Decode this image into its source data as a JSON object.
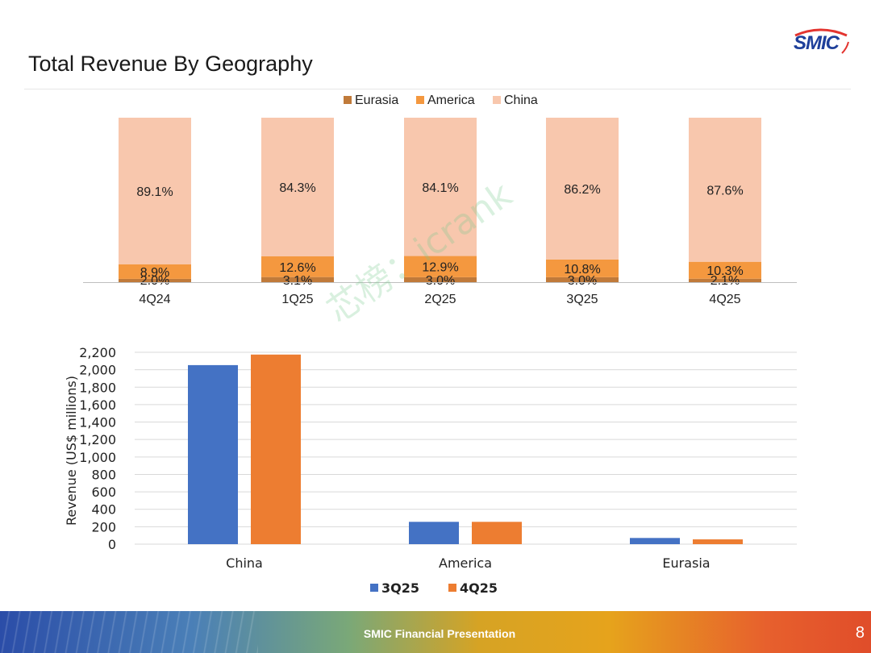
{
  "slide": {
    "title": "Total Revenue By Geography",
    "logo_text": "SMIC",
    "footer_label": "SMIC Financial Presentation",
    "page_number": "8",
    "watermark": "芯榜：icrank"
  },
  "colors": {
    "eurasia": "#c07a3a",
    "america": "#f4983f",
    "china": "#f8c7ad",
    "series_3q25": "#4472c4",
    "series_4q25": "#ed7d31"
  },
  "chart_data": [
    {
      "type": "bar",
      "stacked": true,
      "title": "",
      "categories": [
        "4Q24",
        "1Q25",
        "2Q25",
        "3Q25",
        "4Q25"
      ],
      "legend": [
        "Eurasia",
        "America",
        "China"
      ],
      "legend_position": "top",
      "series": [
        {
          "name": "Eurasia",
          "values": [
            2.0,
            3.1,
            3.0,
            3.0,
            2.1
          ],
          "labels": [
            "2.0%",
            "3.1%",
            "3.0%",
            "3.0%",
            "2.1%"
          ]
        },
        {
          "name": "America",
          "values": [
            8.9,
            12.6,
            12.9,
            10.8,
            10.3
          ],
          "labels": [
            "8.9%",
            "12.6%",
            "12.9%",
            "10.8%",
            "10.3%"
          ]
        },
        {
          "name": "China",
          "values": [
            89.1,
            84.3,
            84.1,
            86.2,
            87.6
          ],
          "labels": [
            "89.1%",
            "84.3%",
            "84.1%",
            "86.2%",
            "87.6%"
          ]
        }
      ],
      "ylim": [
        0,
        100
      ]
    },
    {
      "type": "bar",
      "title": "",
      "categories": [
        "China",
        "America",
        "Eurasia"
      ],
      "series": [
        {
          "name": "3Q25",
          "values": [
            2053,
            256,
            71
          ]
        },
        {
          "name": "4Q25",
          "values": [
            2174,
            256,
            55
          ]
        }
      ],
      "ylabel": "Revenue (US$  millions)",
      "xlabel": "",
      "ylim": [
        0,
        2200
      ],
      "yticks": [
        0,
        200,
        400,
        600,
        800,
        1000,
        1200,
        1400,
        1600,
        1800,
        2000,
        2200
      ],
      "ytick_labels": [
        "0",
        "200",
        "400",
        "600",
        "800",
        "1,000",
        "1,200",
        "1,400",
        "1,600",
        "1,800",
        "2,000",
        "2,200"
      ],
      "grid": true,
      "legend": [
        "3Q25",
        "4Q25"
      ],
      "legend_position": "bottom"
    }
  ]
}
